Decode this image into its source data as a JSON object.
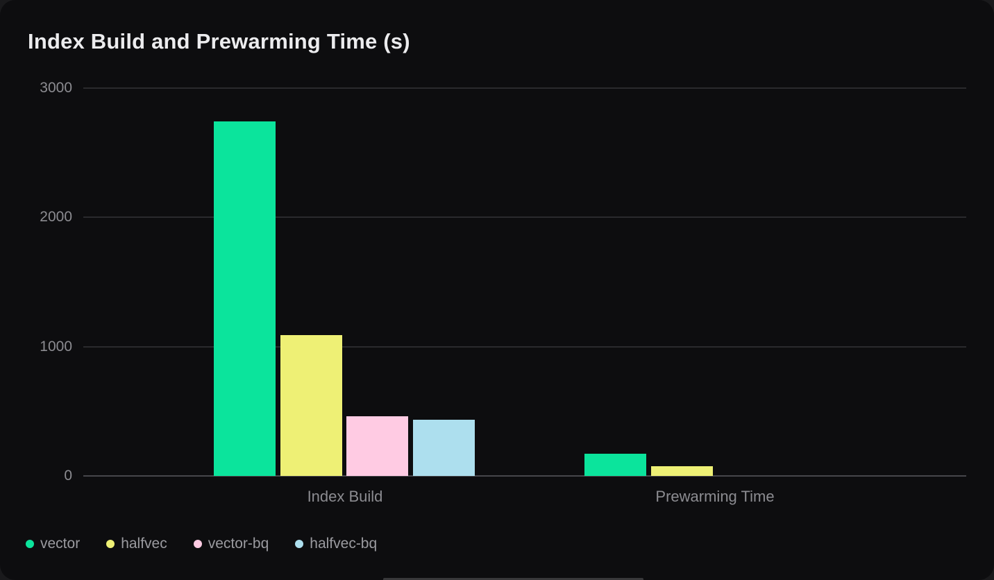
{
  "window": {
    "background": "#1a1a1c",
    "card_background": "#0d0d0f"
  },
  "chart_data": {
    "type": "bar",
    "title": "Index Build and Prewarming Time (s)",
    "categories": [
      "Index Build",
      "Prewarming Time"
    ],
    "series": [
      {
        "name": "vector",
        "color": "#0be49c",
        "values": [
          2740,
          170
        ]
      },
      {
        "name": "halfvec",
        "color": "#eef075",
        "values": [
          1090,
          75
        ]
      },
      {
        "name": "vector-bq",
        "color": "#ffcbe3",
        "values": [
          460,
          0
        ]
      },
      {
        "name": "halfvec-bq",
        "color": "#addfee",
        "values": [
          435,
          0
        ]
      }
    ],
    "xlabel": "",
    "ylabel": "",
    "unit": "s",
    "ylim": [
      0,
      3000
    ],
    "yticks": [
      0,
      1000,
      2000,
      3000
    ],
    "grid": true,
    "legend_position": "bottom-left"
  },
  "theme": {
    "title_color": "#ececee",
    "gridline_color": "#2a2a2d",
    "zero_line_color": "#47474b",
    "tick_label_color": "#8c8c91",
    "category_label_color": "#8c8c91",
    "legend_text_color": "#9b9ba0"
  }
}
